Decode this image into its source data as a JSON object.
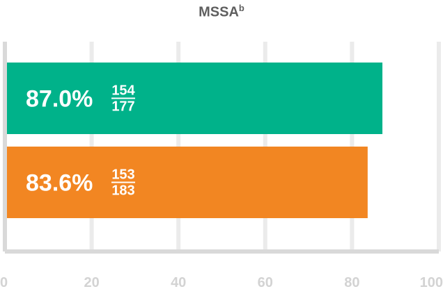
{
  "chart_data": {
    "type": "bar",
    "orientation": "horizontal",
    "title": "MSSA",
    "title_superscript": "b",
    "xlim": [
      0,
      100
    ],
    "x_ticks": [
      "0",
      "20",
      "40",
      "60",
      "80",
      "100"
    ],
    "grid": true,
    "bars": [
      {
        "value": 87.0,
        "label": "87.0%",
        "numerator": "154",
        "denominator": "177",
        "color": "#00b28a"
      },
      {
        "value": 83.6,
        "label": "83.6%",
        "numerator": "153",
        "denominator": "183",
        "color": "#f28622"
      }
    ]
  },
  "colors": {
    "grid": "#ebebeb",
    "axis": "#d9d9d9",
    "tick_label": "#d3d3d3",
    "title": "#5f5f5f"
  }
}
